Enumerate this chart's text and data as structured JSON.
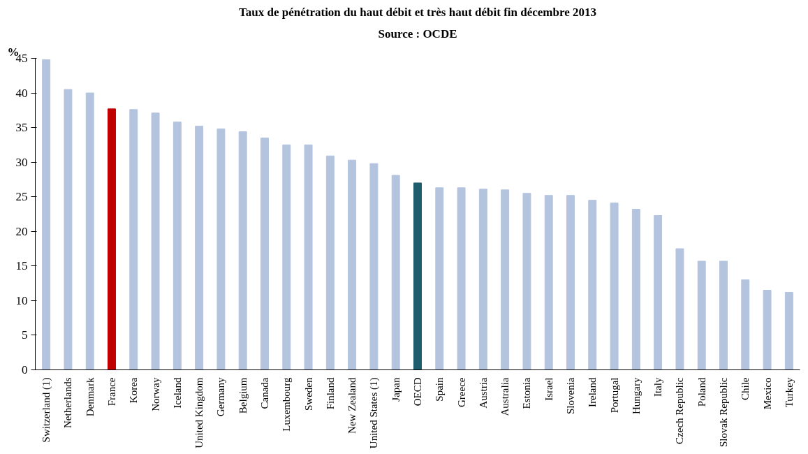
{
  "chart_data": {
    "type": "bar",
    "title": "Taux de pénétration du haut débit et très haut débit fin décembre 2013",
    "subtitle": "Source : OCDE",
    "ylabel": "%",
    "categories": [
      "Switzerland (1)",
      "Netherlands",
      "Denmark",
      "France",
      "Korea",
      "Norway",
      "Iceland",
      "United Kingdom",
      "Germany",
      "Belgium",
      "Canada",
      "Luxembourg",
      "Sweden",
      "Finland",
      "New Zealand",
      "United States (1)",
      "Japan",
      "OECD",
      "Spain",
      "Greece",
      "Austria",
      "Australia",
      "Estonia",
      "Israel",
      "Slovenia",
      "Ireland",
      "Portugal",
      "Hungary",
      "Italy",
      "Czech Republic",
      "Poland",
      "Slovak Republic",
      "Chile",
      "Mexico",
      "Turkey"
    ],
    "values": [
      44.8,
      40.5,
      40.0,
      37.7,
      37.6,
      37.1,
      35.8,
      35.2,
      34.8,
      34.4,
      33.5,
      32.5,
      32.5,
      30.9,
      30.3,
      29.8,
      28.1,
      27.0,
      26.3,
      26.3,
      26.1,
      26.0,
      25.5,
      25.2,
      25.2,
      24.5,
      24.1,
      23.2,
      22.3,
      17.5,
      15.7,
      15.7,
      13.0,
      11.5,
      11.2
    ],
    "colors": [
      "#b4c4df",
      "#b4c4df",
      "#b4c4df",
      "#c00000",
      "#b4c4df",
      "#b4c4df",
      "#b4c4df",
      "#b4c4df",
      "#b4c4df",
      "#b4c4df",
      "#b4c4df",
      "#b4c4df",
      "#b4c4df",
      "#b4c4df",
      "#b4c4df",
      "#b4c4df",
      "#b4c4df",
      "#1f5c6e",
      "#b4c4df",
      "#b4c4df",
      "#b4c4df",
      "#b4c4df",
      "#b4c4df",
      "#b4c4df",
      "#b4c4df",
      "#b4c4df",
      "#b4c4df",
      "#b4c4df",
      "#b4c4df",
      "#b4c4df",
      "#b4c4df",
      "#b4c4df",
      "#b4c4df",
      "#b4c4df",
      "#b4c4df"
    ],
    "ylim": [
      0,
      45
    ],
    "yticks": [
      0,
      5,
      10,
      15,
      20,
      25,
      30,
      35,
      40,
      45
    ],
    "grid": false
  }
}
